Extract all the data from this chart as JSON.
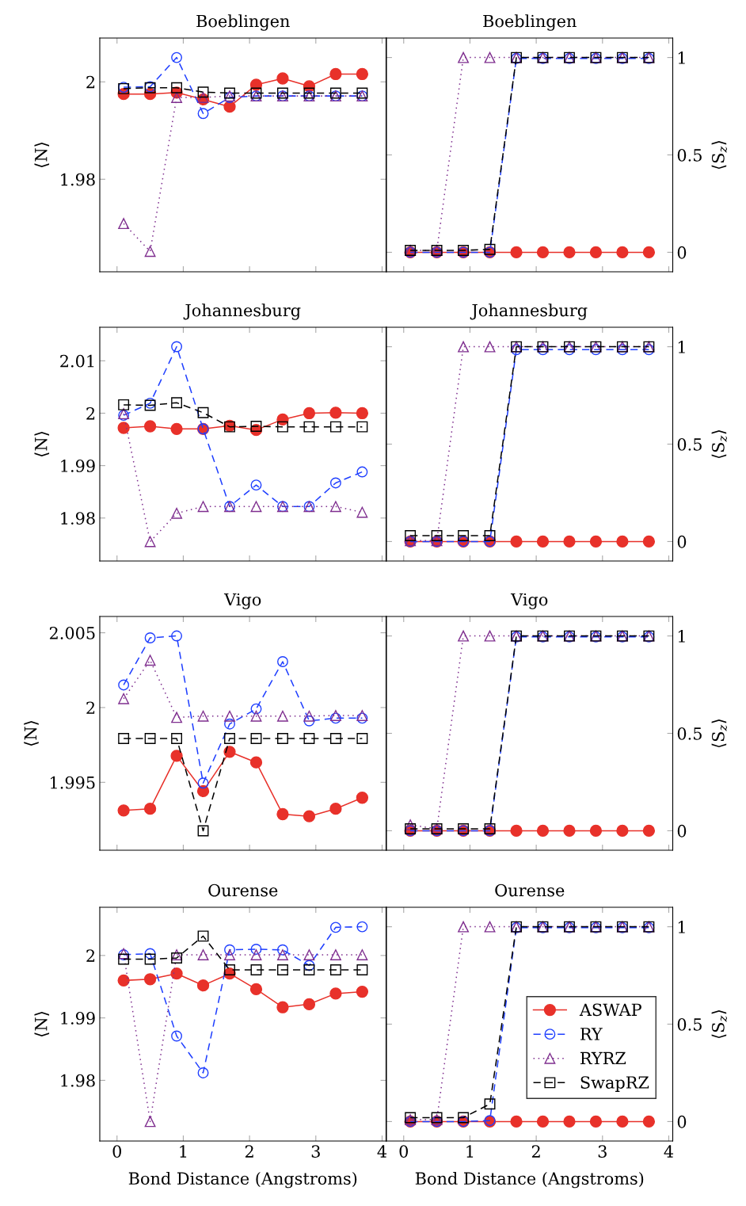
{
  "chart_data": [
    {
      "type": "line",
      "title": "Boeblingen",
      "ylabel": "⟨N⟩",
      "x": [
        0.1,
        0.5,
        0.9,
        1.3,
        1.7,
        2.1,
        2.5,
        2.9,
        3.3,
        3.7
      ],
      "xlim": [
        -0.26,
        4.06
      ],
      "xticks": [
        0,
        1,
        2,
        3,
        4
      ],
      "ylim": [
        1.961,
        2.009
      ],
      "yticks": [
        1.98,
        2
      ],
      "tick_labels": "y",
      "legend": false,
      "series": [
        {
          "color": "#e8312a",
          "marker": "circle",
          "line_style": "solid",
          "values": [
            1.9975,
            1.9975,
            1.9978,
            1.9964,
            1.9949,
            1.9994,
            2.0007,
            1.9991,
            2.0016,
            2.0016
          ]
        },
        {
          "color": "#1f3fff",
          "marker": "circle",
          "line_style": "dashed",
          "values": [
            1.9989,
            1.999,
            2.005,
            1.9935,
            1.9968,
            1.9971,
            1.9971,
            1.9971,
            1.9971,
            1.9971
          ]
        },
        {
          "color": "#7f2f8f",
          "marker": "triangle",
          "line_style": "dotted",
          "values": [
            1.9709,
            1.9652,
            1.9968,
            1.9968,
            1.9971,
            1.9971,
            1.9971,
            1.9971,
            1.9971,
            1.9971
          ]
        },
        {
          "color": "#000000",
          "marker": "square",
          "line_style": "dashed",
          "values": [
            1.9986,
            1.9988,
            1.9988,
            1.9979,
            1.9977,
            1.9977,
            1.9977,
            1.9977,
            1.9977,
            1.9977
          ]
        }
      ]
    },
    {
      "type": "line",
      "title": "Boeblingen",
      "y2label": "⟨S$_{z}$⟩",
      "x": [
        0.1,
        0.5,
        0.9,
        1.3,
        1.7,
        2.1,
        2.5,
        2.9,
        3.3,
        3.7
      ],
      "xlim": [
        -0.26,
        4.06
      ],
      "xticks": [
        0,
        1,
        2,
        3,
        4
      ],
      "y2lim": [
        -0.1,
        1.1
      ],
      "y2ticks": [
        0,
        0.5,
        1
      ],
      "tick_labels": "y",
      "legend": false,
      "series": [
        {
          "color": "#e8312a",
          "marker": "circle",
          "line_style": "solid",
          "axis": "y2",
          "values": [
            0,
            0,
            0,
            0,
            0,
            0,
            0,
            0,
            0,
            0
          ]
        },
        {
          "color": "#1f3fff",
          "marker": "circle",
          "line_style": "dashed",
          "axis": "y2",
          "values": [
            0,
            0,
            0,
            0,
            0.995,
            0.995,
            0.995,
            0.995,
            0.995,
            0.995
          ]
        },
        {
          "color": "#7f2f8f",
          "marker": "triangle",
          "line_style": "dotted",
          "axis": "y2",
          "values": [
            0.01,
            0.01,
            1,
            1,
            1,
            1,
            1,
            1,
            1,
            1
          ]
        },
        {
          "color": "#000000",
          "marker": "square",
          "line_style": "dashed",
          "axis": "y2",
          "values": [
            0.01,
            0.01,
            0.01,
            0.015,
            1,
            1,
            1,
            1,
            1,
            1
          ]
        }
      ]
    },
    {
      "type": "line",
      "title": "Johannesburg",
      "ylabel": "⟨N⟩",
      "x": [
        0.1,
        0.5,
        0.9,
        1.3,
        1.7,
        2.1,
        2.5,
        2.9,
        3.3,
        3.7
      ],
      "xlim": [
        -0.26,
        4.06
      ],
      "xticks": [
        0,
        1,
        2,
        3,
        4
      ],
      "ylim": [
        1.9718,
        2.0164
      ],
      "yticks": [
        1.98,
        1.99,
        2,
        2.01
      ],
      "tick_labels": "y",
      "legend": false,
      "series": [
        {
          "color": "#e8312a",
          "marker": "circle",
          "line_style": "solid",
          "values": [
            1.9972,
            1.9975,
            1.997,
            1.997,
            1.9976,
            1.9968,
            1.9988,
            2.0,
            2.0001,
            2.0
          ]
        },
        {
          "color": "#1f3fff",
          "marker": "circle",
          "line_style": "dashed",
          "values": [
            1.9996,
            2.0019,
            2.0127,
            1.997,
            1.9822,
            1.9863,
            1.9822,
            1.9822,
            1.9867,
            1.9888
          ]
        },
        {
          "color": "#7f2f8f",
          "marker": "triangle",
          "line_style": "dotted",
          "values": [
            1.9999,
            1.9755,
            1.9809,
            1.9822,
            1.9822,
            1.9822,
            1.9822,
            1.9822,
            1.9822,
            1.9811
          ]
        },
        {
          "color": "#000000",
          "marker": "square",
          "line_style": "dashed",
          "values": [
            2.0016,
            2.0015,
            2.002,
            2.0001,
            1.9974,
            1.9975,
            1.9974,
            1.9974,
            1.9974,
            1.9974
          ]
        }
      ]
    },
    {
      "type": "line",
      "title": "Johannesburg",
      "y2label": "⟨S$_{z}$⟩",
      "x": [
        0.1,
        0.5,
        0.9,
        1.3,
        1.7,
        2.1,
        2.5,
        2.9,
        3.3,
        3.7
      ],
      "xlim": [
        -0.26,
        4.06
      ],
      "xticks": [
        0,
        1,
        2,
        3,
        4
      ],
      "y2lim": [
        -0.1,
        1.1
      ],
      "y2ticks": [
        0,
        0.5,
        1
      ],
      "tick_labels": "y",
      "legend": false,
      "series": [
        {
          "color": "#e8312a",
          "marker": "circle",
          "line_style": "solid",
          "axis": "y2",
          "values": [
            0,
            0,
            0,
            0,
            0,
            0,
            0,
            0,
            0,
            0
          ]
        },
        {
          "color": "#1f3fff",
          "marker": "circle",
          "line_style": "dashed",
          "axis": "y2",
          "values": [
            0,
            0,
            0,
            0,
            0.985,
            0.985,
            0.985,
            0.985,
            0.985,
            0.985
          ]
        },
        {
          "color": "#7f2f8f",
          "marker": "triangle",
          "line_style": "dotted",
          "axis": "y2",
          "values": [
            0.005,
            0.005,
            1,
            1,
            1,
            1,
            1,
            1,
            1,
            1
          ]
        },
        {
          "color": "#000000",
          "marker": "square",
          "line_style": "dashed",
          "axis": "y2",
          "values": [
            0.03,
            0.03,
            0.03,
            0.03,
            1,
            1,
            1,
            1,
            1,
            1
          ]
        }
      ]
    },
    {
      "type": "line",
      "title": "Vigo",
      "ylabel": "⟨N⟩",
      "x": [
        0.1,
        0.5,
        0.9,
        1.3,
        1.7,
        2.1,
        2.5,
        2.9,
        3.3,
        3.7
      ],
      "xlim": [
        -0.26,
        4.06
      ],
      "xticks": [
        0,
        1,
        2,
        3,
        4
      ],
      "ylim": [
        1.99046,
        2.00609
      ],
      "yticks": [
        1.995,
        2,
        2.005
      ],
      "tick_labels": "y",
      "legend": false,
      "series": [
        {
          "color": "#e8312a",
          "marker": "circle",
          "line_style": "solid",
          "values": [
            1.99312,
            1.99323,
            1.99677,
            1.99441,
            1.99704,
            1.99633,
            1.99287,
            1.99273,
            1.99323,
            1.99397
          ]
        },
        {
          "color": "#1f3fff",
          "marker": "circle",
          "line_style": "dashed",
          "values": [
            2.00151,
            2.00466,
            2.00479,
            1.99495,
            1.9989,
            1.99991,
            2.00307,
            1.99911,
            1.99929,
            1.99929
          ]
        },
        {
          "color": "#7f2f8f",
          "marker": "triangle",
          "line_style": "dotted",
          "values": [
            2.00059,
            2.00316,
            1.99934,
            1.99943,
            1.99943,
            1.99943,
            1.99943,
            1.99943,
            1.99947,
            1.99947
          ]
        },
        {
          "color": "#000000",
          "marker": "square",
          "line_style": "dashed",
          "values": [
            1.99793,
            1.99793,
            1.99793,
            1.99176,
            1.99793,
            1.99793,
            1.99793,
            1.99793,
            1.99793,
            1.99793
          ]
        }
      ]
    },
    {
      "type": "line",
      "title": "Vigo",
      "y2label": "⟨S$_{z}$⟩",
      "x": [
        0.1,
        0.5,
        0.9,
        1.3,
        1.7,
        2.1,
        2.5,
        2.9,
        3.3,
        3.7
      ],
      "xlim": [
        -0.26,
        4.06
      ],
      "xticks": [
        0,
        1,
        2,
        3,
        4
      ],
      "y2lim": [
        -0.1,
        1.1
      ],
      "y2ticks": [
        0,
        0.5,
        1
      ],
      "tick_labels": "y",
      "legend": false,
      "series": [
        {
          "color": "#e8312a",
          "marker": "circle",
          "line_style": "solid",
          "axis": "y2",
          "values": [
            0,
            0,
            0,
            0,
            0,
            0,
            0,
            0,
            0,
            0
          ]
        },
        {
          "color": "#1f3fff",
          "marker": "circle",
          "line_style": "dashed",
          "axis": "y2",
          "values": [
            0,
            0,
            0,
            0,
            0.995,
            0.995,
            0.995,
            0.995,
            0.995,
            0.995
          ]
        },
        {
          "color": "#7f2f8f",
          "marker": "triangle",
          "line_style": "dotted",
          "axis": "y2",
          "values": [
            0.03,
            0.01,
            1,
            1,
            1,
            1,
            1,
            1,
            1,
            1
          ]
        },
        {
          "color": "#000000",
          "marker": "square",
          "line_style": "dashed",
          "axis": "y2",
          "values": [
            0.01,
            0.01,
            0.01,
            0.01,
            1,
            1,
            1,
            1,
            1,
            1
          ]
        }
      ]
    },
    {
      "type": "line",
      "title": "Ourense",
      "ylabel": "⟨N⟩",
      "xlabel": "Bond Distance (Angstroms)",
      "x": [
        0.1,
        0.5,
        0.9,
        1.3,
        1.7,
        2.1,
        2.5,
        2.9,
        3.3,
        3.7
      ],
      "xlim": [
        -0.26,
        4.06
      ],
      "xticks": [
        0,
        1,
        2,
        3,
        4
      ],
      "ylim": [
        1.97028,
        2.00772
      ],
      "yticks": [
        1.98,
        1.99,
        2
      ],
      "legend": false,
      "series": [
        {
          "color": "#e8312a",
          "marker": "circle",
          "line_style": "solid",
          "values": [
            1.996,
            1.9962,
            1.9971,
            1.9952,
            1.9971,
            1.9946,
            1.9917,
            1.9922,
            1.9939,
            1.9942
          ]
        },
        {
          "color": "#1f3fff",
          "marker": "circle",
          "line_style": "dashed",
          "values": [
            2.0001,
            2.0003,
            1.9871,
            1.9812,
            2.0009,
            2.001,
            2.0009,
            1.9984,
            2.0045,
            2.0046
          ]
        },
        {
          "color": "#7f2f8f",
          "marker": "triangle",
          "line_style": "dotted",
          "values": [
            2.0003,
            1.9734,
            2.0001,
            2.0001,
            2.0001,
            2.0001,
            2.0001,
            2.0001,
            2.0001,
            2.0001
          ]
        },
        {
          "color": "#000000",
          "marker": "square",
          "line_style": "dashed",
          "values": [
            1.9994,
            1.9994,
            1.9996,
            2.0031,
            1.9977,
            1.9977,
            1.9977,
            1.9977,
            1.9977,
            1.9977
          ]
        }
      ]
    },
    {
      "type": "line",
      "title": "Ourense",
      "y2label": "⟨S$_{z}$⟩",
      "xlabel": "Bond Distance (Angstroms)",
      "x": [
        0.1,
        0.5,
        0.9,
        1.3,
        1.7,
        2.1,
        2.5,
        2.9,
        3.3,
        3.7
      ],
      "xlim": [
        -0.26,
        4.06
      ],
      "xticks": [
        0,
        1,
        2,
        3,
        4
      ],
      "y2lim": [
        -0.1,
        1.1
      ],
      "y2ticks": [
        0,
        0.5,
        1
      ],
      "legend": "right",
      "series": [
        {
          "name": "ASWAP",
          "color": "#e8312a",
          "marker": "circle",
          "line_style": "solid",
          "axis": "y2",
          "values": [
            0,
            0,
            0,
            0,
            0,
            0,
            0,
            0,
            0,
            0
          ]
        },
        {
          "name": "RY",
          "color": "#1f3fff",
          "marker": "circle",
          "line_style": "dashed",
          "axis": "y2",
          "values": [
            0,
            0,
            0,
            0.005,
            0.995,
            0.995,
            0.995,
            0.995,
            0.995,
            0.995
          ]
        },
        {
          "name": "RYRZ",
          "color": "#7f2f8f",
          "marker": "triangle",
          "line_style": "dotted",
          "axis": "y2",
          "values": [
            0.01,
            0.01,
            1,
            1,
            1,
            1,
            1,
            1,
            1,
            1
          ]
        },
        {
          "name": "SwapRZ",
          "color": "#000000",
          "marker": "square",
          "line_style": "dashed",
          "axis": "y2",
          "values": [
            0.02,
            0.02,
            0.02,
            0.09,
            1,
            1,
            1,
            1,
            1,
            1
          ]
        }
      ]
    }
  ]
}
